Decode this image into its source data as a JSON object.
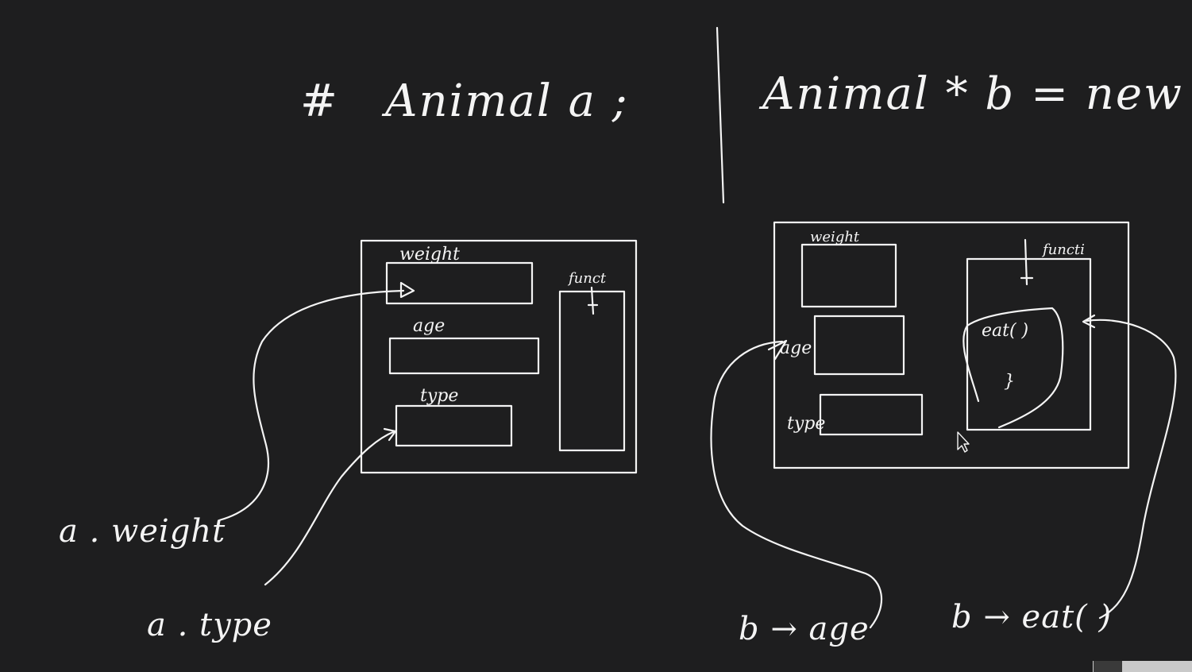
{
  "left_panel": {
    "heading_mark": "#",
    "declaration": "Animal a ;",
    "object_fields": {
      "weight": "weight",
      "age": "age",
      "type": "type",
      "funct": "funct"
    },
    "access_expressions": {
      "weight": "a . weight",
      "type": "a . type"
    }
  },
  "right_panel": {
    "declaration": "Animal * b = new Animal ;",
    "object_fields": {
      "weight": "weight",
      "age": "age",
      "type": "type",
      "funct": "functi",
      "method": "eat( )",
      "method_body": "}"
    },
    "access_expressions": {
      "age": "b → age",
      "eat": "b → eat( )"
    }
  },
  "colors": {
    "background": "#1e1e1f",
    "ink": "#f4f4f4"
  }
}
